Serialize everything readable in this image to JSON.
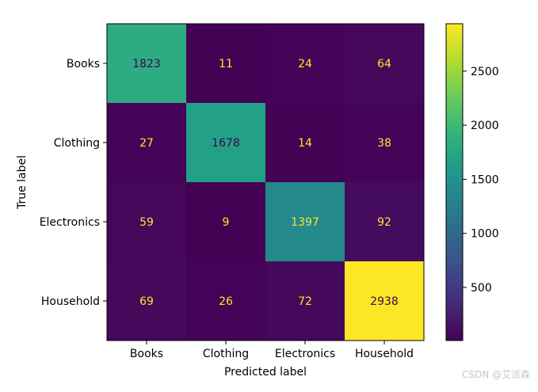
{
  "chart_data": {
    "type": "heatmap",
    "subtype": "confusion-matrix",
    "colormap": "viridis",
    "title": "",
    "xlabel": "Predicted label",
    "ylabel": "True label",
    "x_categories": [
      "Books",
      "Clothing",
      "Electronics",
      "Household"
    ],
    "y_categories": [
      "Books",
      "Clothing",
      "Electronics",
      "Household"
    ],
    "values": [
      [
        1823,
        11,
        24,
        64
      ],
      [
        27,
        1678,
        14,
        38
      ],
      [
        59,
        9,
        1397,
        92
      ],
      [
        69,
        26,
        72,
        2938
      ]
    ],
    "colorbar": {
      "min": 9,
      "max": 2938,
      "ticks": [
        500,
        1000,
        1500,
        2000,
        2500
      ]
    },
    "text_colors": {
      "on_dark": "#fde725",
      "on_light": "#440154"
    }
  },
  "watermark": "CSDN @艾派森"
}
